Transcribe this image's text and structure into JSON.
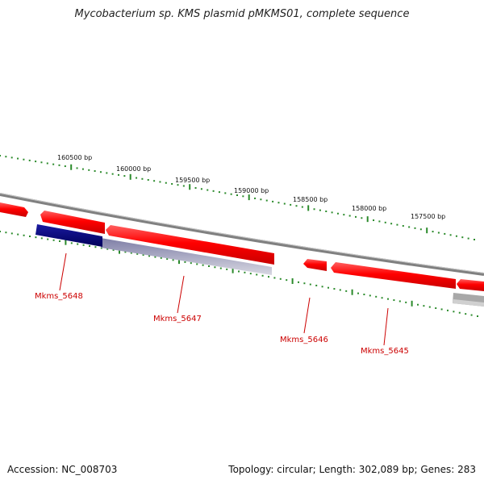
{
  "title": "Mycobacterium sp. KMS plasmid pMKMS01, complete sequence",
  "ticks": [
    "160500 bp",
    "160000 bp",
    "159500 bp",
    "159000 bp",
    "158500 bp",
    "158000 bp",
    "157500 bp"
  ],
  "genes": [
    {
      "label": "Mkms_5648",
      "strand": "reverse",
      "color": "#000080"
    },
    {
      "label": "Mkms_5647",
      "strand": "forward",
      "color": "#ff0000"
    },
    {
      "label": "Mkms_5646",
      "strand": "forward",
      "color": "#ff0000"
    },
    {
      "label": "Mkms_5645",
      "strand": "forward",
      "color": "#ff0000"
    }
  ],
  "colors": {
    "forward_gene": "#ff0000",
    "reverse_gene_highlight": "#000080",
    "reverse_shadow": "#a0a0ae",
    "backbone": "#808080",
    "tick": "#2a8a2a",
    "label": "#cc0000"
  },
  "footer": {
    "accession": "Accession: NC_008703",
    "topology": "Topology: circular; Length: 302,089 bp; Genes: 283"
  }
}
